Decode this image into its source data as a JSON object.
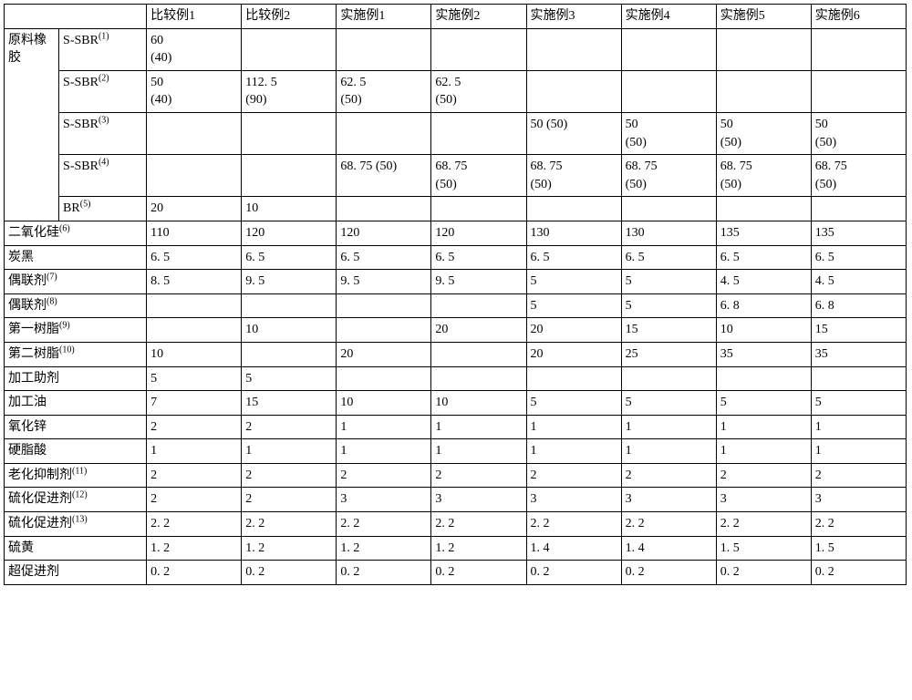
{
  "header": {
    "blank1": "",
    "blank2": "",
    "cols": [
      "比较例1",
      "比较例2",
      "实施例1",
      "实施例2",
      "实施例3",
      "实施例4",
      "实施例5",
      "实施例6"
    ]
  },
  "rubber_label": "原料橡胶",
  "sub_labels": {
    "sbr1": {
      "text": "S-SBR",
      "sup": "(1)"
    },
    "sbr2": {
      "text": "S-SBR",
      "sup": "(2)"
    },
    "sbr3": {
      "text": "S-SBR",
      "sup": "(3)"
    },
    "sbr4": {
      "text": "S-SBR",
      "sup": "(4)"
    },
    "br": {
      "text": "BR",
      "sup": "(5)"
    }
  },
  "rubber_rows": {
    "sbr1": [
      "60\n (40)",
      "",
      "",
      "",
      "",
      "",
      "",
      ""
    ],
    "sbr2": [
      "50\n (40)",
      "112. 5\n (90)",
      "62. 5\n (50)",
      "62. 5\n (50)",
      "",
      "",
      "",
      ""
    ],
    "sbr3": [
      "",
      "",
      "",
      "",
      "50 (50)",
      "50\n (50)",
      "50\n (50)",
      "50\n (50)"
    ],
    "sbr4": [
      "",
      "",
      "68. 75 (50)",
      "68. 75\n (50)",
      "68. 75\n (50)",
      "68. 75\n (50)",
      "68. 75\n (50)",
      "68. 75\n (50)"
    ],
    "br": [
      "20",
      "10",
      "",
      "",
      "",
      "",
      "",
      ""
    ]
  },
  "long_rows": [
    {
      "label_text": "二氧化硅",
      "label_sup": "(6)",
      "vals": [
        "110",
        "120",
        "120",
        "120",
        "130",
        "130",
        "135",
        "135"
      ]
    },
    {
      "label_text": "炭黑",
      "label_sup": "",
      "vals": [
        "6. 5",
        "6. 5",
        "6. 5",
        "6. 5",
        "6. 5",
        "6. 5",
        "6. 5",
        "6. 5"
      ]
    },
    {
      "label_text": "偶联剂",
      "label_sup": "(7)",
      "vals": [
        "8. 5",
        "9. 5",
        "9. 5",
        "9. 5",
        "5",
        "5",
        "4. 5",
        "4. 5"
      ]
    },
    {
      "label_text": "偶联剂",
      "label_sup": "(8)",
      "vals": [
        "",
        "",
        "",
        "",
        "5",
        "5",
        "6. 8",
        "6. 8"
      ]
    },
    {
      "label_text": "第一树脂",
      "label_sup": "(9)",
      "vals": [
        "",
        "10",
        "",
        "20",
        "20",
        "15",
        "10",
        "15"
      ]
    },
    {
      "label_text": "第二树脂",
      "label_sup": "(10)",
      "vals": [
        "10",
        "",
        "20",
        "",
        "20",
        "25",
        "35",
        "35"
      ]
    },
    {
      "label_text": "加工助剂",
      "label_sup": "",
      "vals": [
        "5",
        "5",
        "",
        "",
        "",
        "",
        "",
        ""
      ]
    },
    {
      "label_text": "加工油",
      "label_sup": "",
      "vals": [
        "7",
        "15",
        "10",
        "10",
        "5",
        "5",
        "5",
        "5"
      ]
    },
    {
      "label_text": "氧化锌",
      "label_sup": "",
      "vals": [
        "2",
        "2",
        "1",
        "1",
        "1",
        "1",
        "1",
        "1"
      ]
    },
    {
      "label_text": "硬脂酸",
      "label_sup": "",
      "vals": [
        "1",
        "1",
        "1",
        "1",
        "1",
        "1",
        "1",
        "1"
      ]
    },
    {
      "label_text": "老化抑制剂",
      "label_sup": "(11)",
      "vals": [
        "2",
        "2",
        "2",
        "2",
        "2",
        "2",
        "2",
        "2"
      ]
    },
    {
      "label_text": "硫化促进剂",
      "label_sup": "(12)",
      "vals": [
        "2",
        "2",
        "3",
        "3",
        "3",
        "3",
        "3",
        "3"
      ]
    },
    {
      "label_text": "硫化促进剂",
      "label_sup": "(13)",
      "vals": [
        "2. 2",
        "2. 2",
        "2. 2",
        "2. 2",
        "2. 2",
        "2. 2",
        "2. 2",
        "2. 2"
      ]
    },
    {
      "label_text": "硫黄",
      "label_sup": "",
      "vals": [
        "1. 2",
        "1. 2",
        "1. 2",
        "1. 2",
        "1. 4",
        "1. 4",
        "1. 5",
        "1. 5"
      ]
    },
    {
      "label_text": "超促进剂",
      "label_sup": "",
      "vals": [
        "0. 2",
        "0. 2",
        "0. 2",
        "0. 2",
        "0. 2",
        "0. 2",
        "0. 2",
        "0. 2"
      ]
    }
  ]
}
